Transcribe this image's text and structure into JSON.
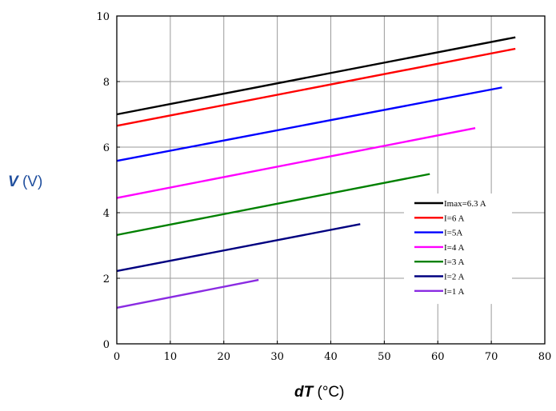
{
  "chart_data": {
    "type": "line",
    "title": "",
    "xlabel": {
      "symbol": "dT",
      "unit": "(°C)"
    },
    "ylabel": {
      "symbol": "V",
      "unit": "(V)"
    },
    "xlim": [
      0,
      80
    ],
    "ylim": [
      0,
      10
    ],
    "x_ticks": [
      "0",
      "10",
      "20",
      "30",
      "40",
      "50",
      "60",
      "70",
      "80"
    ],
    "y_ticks": [
      "0",
      "2",
      "4",
      "6",
      "8",
      "10"
    ],
    "grid": true,
    "legend_position": "right",
    "series": [
      {
        "name": "Imax=6.3 A",
        "color": "#000000",
        "x": [
          0,
          74.5
        ],
        "y": [
          7.0,
          9.35
        ]
      },
      {
        "name": "I=6 A",
        "color": "#ff0000",
        "x": [
          0,
          74.5
        ],
        "y": [
          6.65,
          9.0
        ]
      },
      {
        "name": "I=5A",
        "color": "#0000ff",
        "x": [
          0,
          72
        ],
        "y": [
          5.58,
          7.82
        ]
      },
      {
        "name": "I=4 A",
        "color": "#ff00ff",
        "x": [
          0,
          67
        ],
        "y": [
          4.45,
          6.58
        ]
      },
      {
        "name": "I=3 A",
        "color": "#008000",
        "x": [
          0,
          58.5
        ],
        "y": [
          3.32,
          5.18
        ]
      },
      {
        "name": "I=2 A",
        "color": "#000080",
        "x": [
          0,
          45.5
        ],
        "y": [
          2.22,
          3.65
        ]
      },
      {
        "name": "I=1 A",
        "color": "#8a2be2",
        "x": [
          0,
          26.5
        ],
        "y": [
          1.1,
          1.95
        ]
      }
    ]
  }
}
